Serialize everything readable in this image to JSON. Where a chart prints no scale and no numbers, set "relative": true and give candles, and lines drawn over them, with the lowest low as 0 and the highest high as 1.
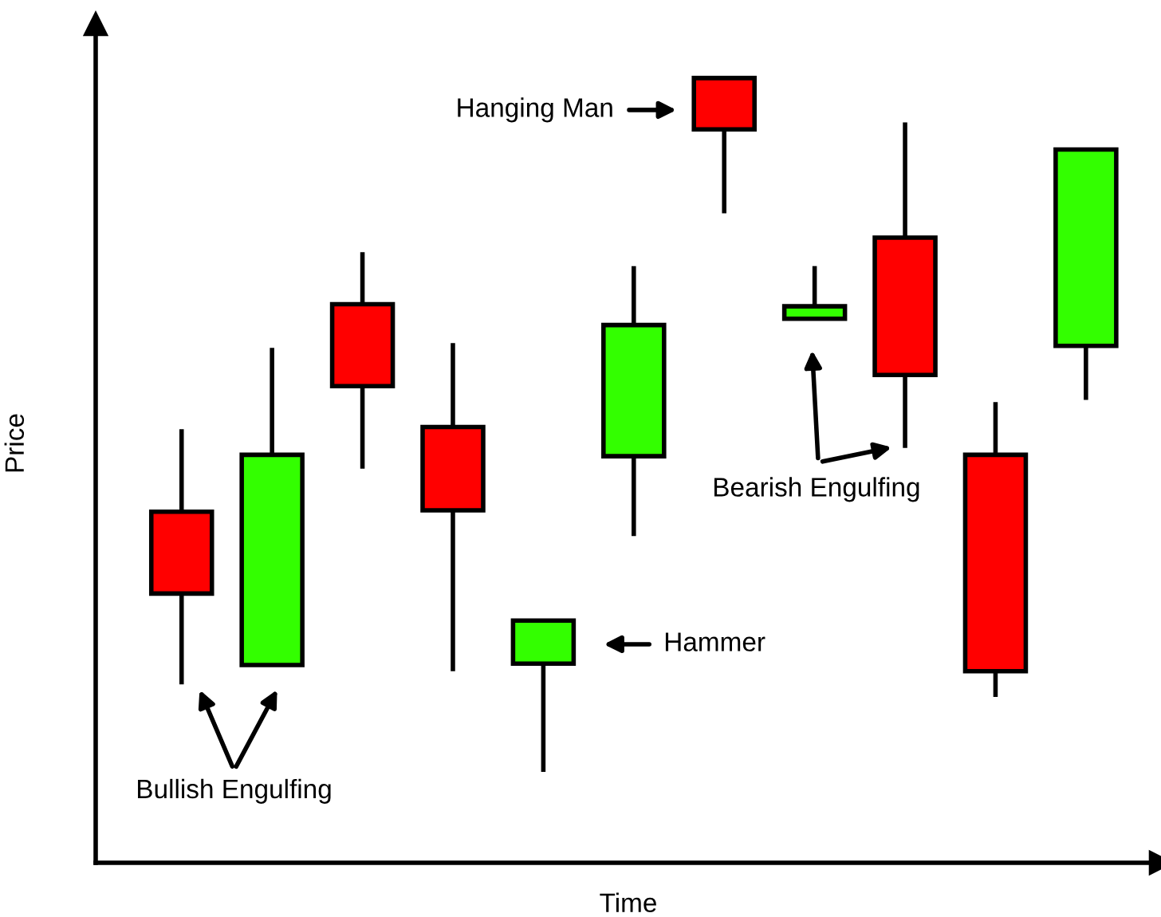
{
  "chart_data": {
    "type": "candlestick",
    "relative": true,
    "xlabel": "Time",
    "ylabel": "Price",
    "categories": [
      null,
      null,
      null,
      null,
      null,
      null,
      null,
      null,
      null,
      null,
      null
    ],
    "ohlc": [
      [
        0.375,
        0.494,
        0.126,
        0.257
      ],
      [
        0.154,
        0.611,
        0.154,
        0.457
      ],
      [
        0.674,
        0.749,
        0.437,
        0.556
      ],
      [
        0.497,
        0.618,
        0.145,
        0.377
      ],
      [
        0.156,
        0.218,
        0,
        0.218
      ],
      [
        0.455,
        0.729,
        0.34,
        0.644
      ],
      [
        1,
        1,
        0.805,
        0.926
      ],
      [
        0.653,
        0.729,
        0.653,
        0.671
      ],
      [
        0.77,
        0.936,
        0.467,
        0.572
      ],
      [
        0.457,
        0.533,
        0.108,
        0.145
      ],
      [
        0.614,
        0.897,
        0.536,
        0.897
      ]
    ],
    "colors": [
      "#ff0000",
      "#33ff00",
      "#ff0000",
      "#ff0000",
      "#33ff00",
      "#33ff00",
      "#ff0000",
      "#33ff00",
      "#ff0000",
      "#ff0000",
      "#33ff00"
    ],
    "annotations": [
      "Bullish Engulfing",
      "Hammer",
      "Hanging Man",
      "Bearish Engulfing"
    ]
  }
}
